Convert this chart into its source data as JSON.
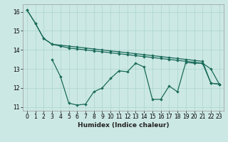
{
  "xlabel": "Humidex (Indice chaleur)",
  "bg_color": "#cce8e4",
  "grid_color": "#aad4cc",
  "line_color": "#1a6b5a",
  "xlim": [
    -0.5,
    23.5
  ],
  "ylim": [
    10.8,
    16.4
  ],
  "yticks": [
    11,
    12,
    13,
    14,
    15,
    16
  ],
  "xticks": [
    0,
    1,
    2,
    3,
    4,
    5,
    6,
    7,
    8,
    9,
    10,
    11,
    12,
    13,
    14,
    15,
    16,
    17,
    18,
    19,
    20,
    21,
    22,
    23
  ],
  "s1_x": [
    0,
    1,
    2,
    3,
    4,
    5,
    6,
    7,
    8,
    9,
    10,
    11,
    12,
    13,
    14,
    15,
    16,
    17,
    18,
    19,
    20,
    21,
    22,
    23
  ],
  "s1_y": [
    16.1,
    15.4,
    14.6,
    14.3,
    14.25,
    14.2,
    14.15,
    14.1,
    14.05,
    14.0,
    13.95,
    13.9,
    13.85,
    13.8,
    13.75,
    13.7,
    13.65,
    13.6,
    13.55,
    13.5,
    13.45,
    13.4,
    12.25,
    12.2
  ],
  "s2_x": [
    0,
    1,
    2,
    3,
    4,
    5,
    6,
    7,
    8,
    9,
    10,
    11,
    12,
    13,
    14,
    15,
    16,
    17,
    18,
    19,
    20,
    21,
    22,
    23
  ],
  "s2_y": [
    16.1,
    15.4,
    14.6,
    14.3,
    14.2,
    14.1,
    14.05,
    14.0,
    13.95,
    13.9,
    13.85,
    13.8,
    13.75,
    13.7,
    13.65,
    13.6,
    13.55,
    13.5,
    13.45,
    13.4,
    13.35,
    13.3,
    12.25,
    12.2
  ],
  "s3_x": [
    3,
    4,
    5,
    6,
    7,
    8,
    9,
    10,
    11,
    12,
    13,
    14,
    15,
    16,
    17,
    18,
    19,
    20,
    21,
    22,
    23
  ],
  "s3_y": [
    13.5,
    12.6,
    11.2,
    11.1,
    11.15,
    11.8,
    12.0,
    12.5,
    12.9,
    12.85,
    13.3,
    13.1,
    11.4,
    11.4,
    12.1,
    11.8,
    13.35,
    13.3,
    13.3,
    13.0,
    12.2
  ]
}
